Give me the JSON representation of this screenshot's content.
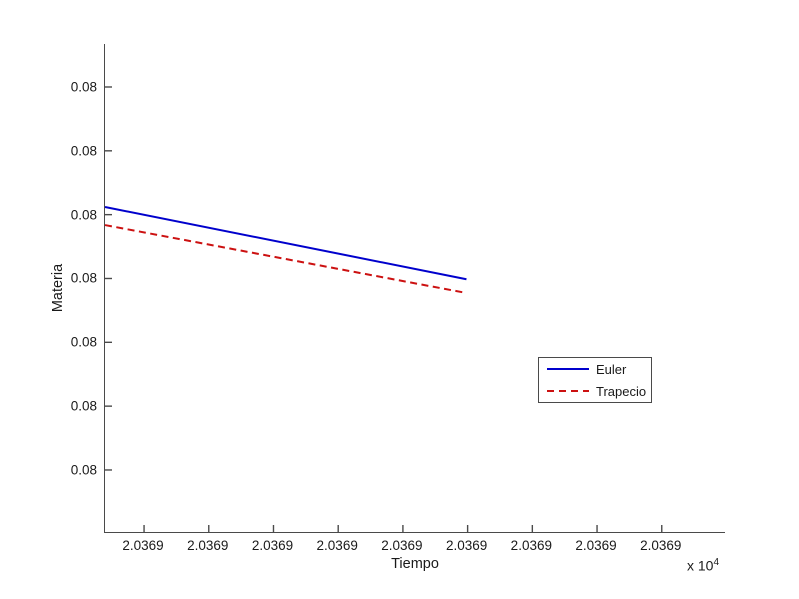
{
  "figure": {
    "background": "#ffffff",
    "axis_color": "#4a4a4a",
    "text_color": "#1a1a1a"
  },
  "chart_data": {
    "type": "line",
    "title": "",
    "xlabel": "Tiempo",
    "ylabel": "Materia",
    "x_multiplier_base": "x 10",
    "x_multiplier_exp": "4",
    "x_tick_labels": [
      "2.0369",
      "2.0369",
      "2.0369",
      "2.0369",
      "2.0369",
      "2.0369",
      "2.0369",
      "2.0369",
      "2.0369"
    ],
    "y_tick_labels": [
      "0.08",
      "0.08",
      "0.08",
      "0.08",
      "0.08",
      "0.08",
      "0.08"
    ],
    "grid": false,
    "box": false,
    "legend": {
      "position": "center-right",
      "entries": [
        "Euler",
        "Trapecio"
      ]
    },
    "series": [
      {
        "name": "Euler",
        "color": "#0000cc",
        "line_style": "solid",
        "points": [
          {
            "x_frac": 0.0,
            "y_frac": 0.666
          },
          {
            "x_frac": 0.583,
            "y_frac": 0.518
          }
        ]
      },
      {
        "name": "Trapecio",
        "color": "#cc1111",
        "line_style": "dashed",
        "points": [
          {
            "x_frac": 0.0,
            "y_frac": 0.629
          },
          {
            "x_frac": 0.582,
            "y_frac": 0.49
          }
        ]
      }
    ]
  }
}
